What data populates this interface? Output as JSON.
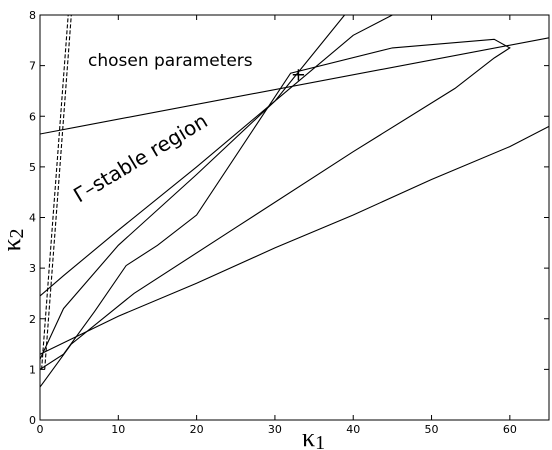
{
  "chart_data": {
    "type": "line",
    "xlabel": "κ",
    "xlabel_sub": "1",
    "ylabel": "κ",
    "ylabel_sub": "2",
    "xlim": [
      0,
      65
    ],
    "ylim": [
      0,
      8
    ],
    "xticks": [
      0,
      10,
      20,
      30,
      40,
      50,
      60
    ],
    "yticks": [
      0,
      1,
      2,
      3,
      4,
      5,
      6,
      7,
      8
    ],
    "grid": false,
    "legend": "none",
    "annotations": {
      "chosen": "chosen parameters",
      "region": "Γ–stable region"
    },
    "marker": {
      "label": "+",
      "x": 33,
      "y": 6.82
    },
    "series": [
      {
        "style": "solid",
        "x": [
          0,
          65
        ],
        "y": [
          5.65,
          7.55
        ]
      },
      {
        "style": "solid",
        "x": [
          0,
          3,
          10,
          20,
          30,
          40,
          45
        ],
        "y": [
          2.45,
          2.85,
          3.75,
          5.0,
          6.3,
          7.6,
          8.0
        ]
      },
      {
        "style": "solid",
        "x": [
          0,
          3,
          10,
          20,
          30,
          38.9
        ],
        "y": [
          1.2,
          2.2,
          3.45,
          4.85,
          6.3,
          8.0
        ]
      },
      {
        "style": "solid",
        "x": [
          0,
          4,
          12,
          25,
          40,
          53,
          58,
          60,
          58,
          45,
          32,
          20,
          15,
          11,
          7,
          3,
          0
        ],
        "y": [
          0.65,
          1.5,
          2.5,
          3.8,
          5.3,
          6.55,
          7.15,
          7.35,
          7.52,
          7.35,
          6.85,
          4.05,
          3.45,
          3.05,
          2.15,
          1.3,
          1.0
        ]
      },
      {
        "style": "solid",
        "x": [
          0,
          10,
          20,
          30,
          40,
          50,
          60,
          65
        ],
        "y": [
          1.3,
          2.05,
          2.7,
          3.4,
          4.05,
          4.75,
          5.4,
          5.8
        ]
      },
      {
        "style": "dashed",
        "x": [
          0.2,
          3.6
        ],
        "y": [
          1.0,
          8.0
        ]
      },
      {
        "style": "dashed",
        "x": [
          0.6,
          4.0
        ],
        "y": [
          1.0,
          8.0
        ]
      }
    ]
  }
}
